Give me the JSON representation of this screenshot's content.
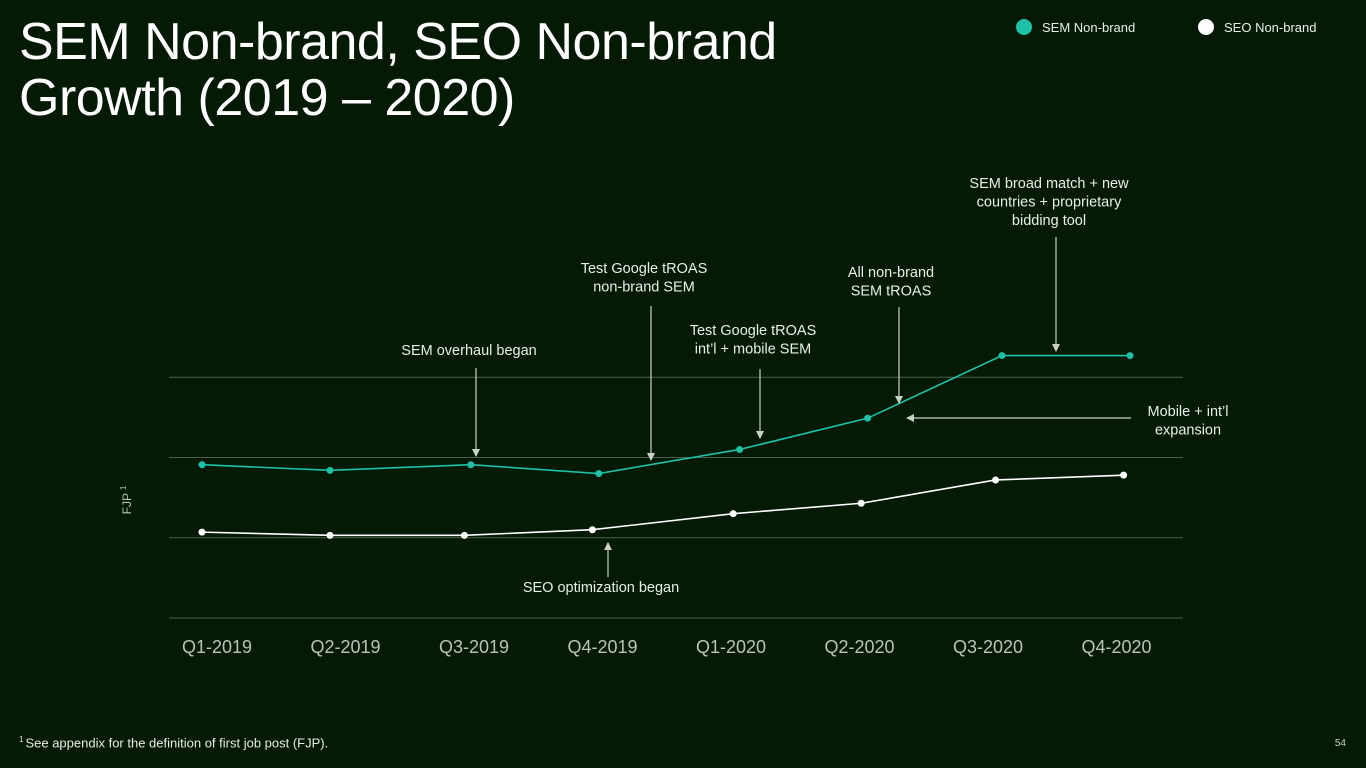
{
  "slide": {
    "title_line1": "SEM Non-brand, SEO Non-brand",
    "title_line2": "Growth (2019 – 2020)",
    "footnote_marker": "1",
    "footnote_text": "See appendix for the definition of first job post (FJP).",
    "page_number": "54"
  },
  "legend": [
    {
      "label": "SEM Non-brand",
      "color": "#1ec1a8"
    },
    {
      "label": "SEO Non-brand",
      "color": "#ffffff"
    }
  ],
  "colors": {
    "background": "#041a04",
    "sem": "#1ec1a8",
    "seo": "#ffffff",
    "grid": "#4d5e4d",
    "axis_text": "#b9c4b9",
    "arrow": "#c9d2c9"
  },
  "chart_data": {
    "type": "line",
    "ylabel": "FJP",
    "ylabel_superscript": "1",
    "categories": [
      "Q1-2019",
      "Q2-2019",
      "Q3-2019",
      "Q4-2019",
      "Q1-2020",
      "Q2-2020",
      "Q3-2020",
      "Q4-2020"
    ],
    "ylim": [
      0,
      4
    ],
    "grid": true,
    "y_tick_labels_shown": false,
    "legend_position": "top-right",
    "series": [
      {
        "name": "SEM Non-brand",
        "x": [
          0.0,
          1.0,
          2.1,
          3.1,
          4.2,
          5.2,
          6.25,
          7.25
        ],
        "values": [
          1.91,
          1.84,
          1.91,
          1.8,
          2.1,
          2.49,
          3.27,
          3.27
        ]
      },
      {
        "name": "SEO Non-brand",
        "x": [
          0.0,
          1.0,
          2.05,
          3.05,
          4.15,
          5.15,
          6.2,
          7.2
        ],
        "values": [
          1.07,
          1.03,
          1.03,
          1.1,
          1.3,
          1.43,
          1.72,
          1.78
        ]
      }
    ],
    "annotations": [
      {
        "lines": [
          "SEM overhaul began"
        ],
        "target": "SEM Non-brand",
        "point": 2
      },
      {
        "lines": [
          "Test Google tROAS",
          "non-brand SEM"
        ],
        "target": "SEM Non-brand",
        "point": 3
      },
      {
        "lines": [
          "Test Google tROAS",
          "int’l + mobile SEM"
        ],
        "target": "SEM Non-brand",
        "point": 4
      },
      {
        "lines": [
          "All non-brand",
          "SEM tROAS"
        ],
        "target": "SEM Non-brand",
        "point": 5
      },
      {
        "lines": [
          "SEM broad match + new",
          "countries + proprietary",
          "bidding tool"
        ],
        "target": "SEM Non-brand",
        "point": 6
      },
      {
        "lines": [
          "Mobile + int’l",
          "expansion"
        ],
        "target": "SEM Non-brand",
        "point": 5,
        "from": "right"
      },
      {
        "lines": [
          "SEO optimization began"
        ],
        "target": "SEO Non-brand",
        "point": 3,
        "from": "below"
      }
    ]
  }
}
